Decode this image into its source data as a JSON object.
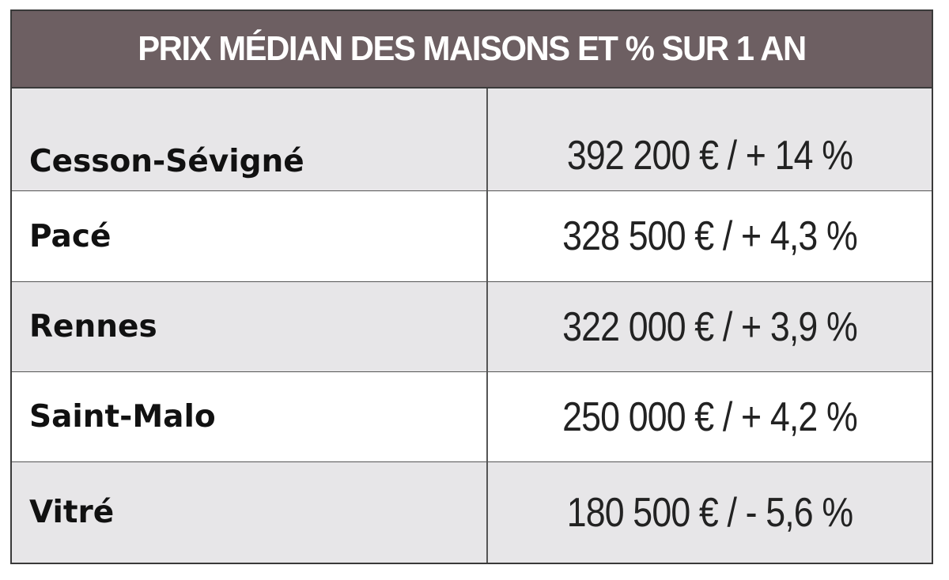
{
  "chart_data": {
    "type": "table",
    "title": "PRIX MÉDIAN DES MAISONS ET % SUR 1 AN",
    "rows": [
      {
        "city": "Cesson-Sévigné",
        "value_text": "392 200 € / + 14 %",
        "price": 392200,
        "change_pct": 14
      },
      {
        "city": "Pacé",
        "value_text": "328 500 € / + 4,3 %",
        "price": 328500,
        "change_pct": 4.3
      },
      {
        "city": "Rennes",
        "value_text": "322 000 € / + 3,9 %",
        "price": 322000,
        "change_pct": 3.9
      },
      {
        "city": "Saint-Malo",
        "value_text": "250 000 € / + 4,2 %",
        "price": 250000,
        "change_pct": 4.2
      },
      {
        "city": "Vitré",
        "value_text": "180 500 € / - 5,6 %",
        "price": 180500,
        "change_pct": -5.6
      }
    ]
  },
  "colors": {
    "header_bg": "#6d5f62",
    "header_text": "#ffffff",
    "shaded_row": "#e7e6e8",
    "border": "#3a3a3a"
  }
}
